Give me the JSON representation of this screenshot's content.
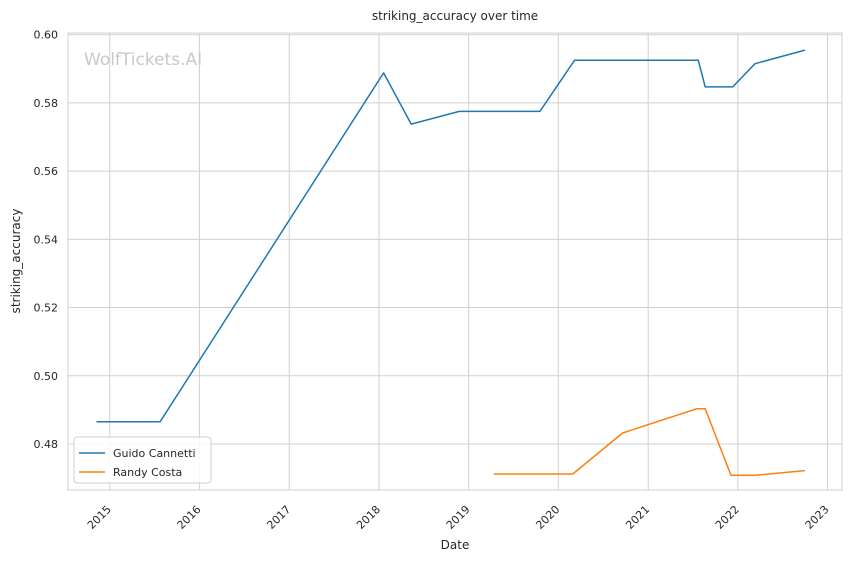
{
  "chart_data": {
    "type": "line",
    "title": "striking_accuracy over time",
    "xlabel": "Date",
    "ylabel": "striking_accuracy",
    "watermark": "WolfTickets.AI",
    "x_tick_labels": [
      "2015",
      "2016",
      "2017",
      "2018",
      "2019",
      "2020",
      "2021",
      "2022",
      "2023"
    ],
    "y_tick_labels": [
      "0.48",
      "0.50",
      "0.52",
      "0.54",
      "0.56",
      "0.58",
      "0.60"
    ],
    "xlim": [
      "2014-07-15",
      "2023-03-01"
    ],
    "ylim": [
      0.4665,
      0.6005
    ],
    "grid": true,
    "legend_position": "lower-left",
    "series": [
      {
        "name": "Guido Cannetti",
        "color": "#1f77b4",
        "points": [
          [
            "2014-11-08",
            0.4865
          ],
          [
            "2015-07-25",
            0.4865
          ],
          [
            "2018-01-20",
            0.5888
          ],
          [
            "2018-05-12",
            0.5738
          ],
          [
            "2018-11-24",
            0.5775
          ],
          [
            "2019-10-18",
            0.5775
          ],
          [
            "2020-03-07",
            0.5925
          ],
          [
            "2021-07-24",
            0.5925
          ],
          [
            "2021-08-21",
            0.5847
          ],
          [
            "2021-12-11",
            0.5847
          ],
          [
            "2022-03-12",
            0.5915
          ],
          [
            "2022-10-01",
            0.5955
          ]
        ]
      },
      {
        "name": "Randy Costa",
        "color": "#ff7f0e",
        "points": [
          [
            "2019-04-13",
            0.4712
          ],
          [
            "2019-11-09",
            0.4712
          ],
          [
            "2020-02-29",
            0.4712
          ],
          [
            "2020-09-19",
            0.4832
          ],
          [
            "2021-07-17",
            0.4903
          ],
          [
            "2021-08-21",
            0.4903
          ],
          [
            "2021-12-04",
            0.4708
          ],
          [
            "2022-03-12",
            0.4708
          ],
          [
            "2022-10-01",
            0.4722
          ]
        ]
      }
    ]
  }
}
